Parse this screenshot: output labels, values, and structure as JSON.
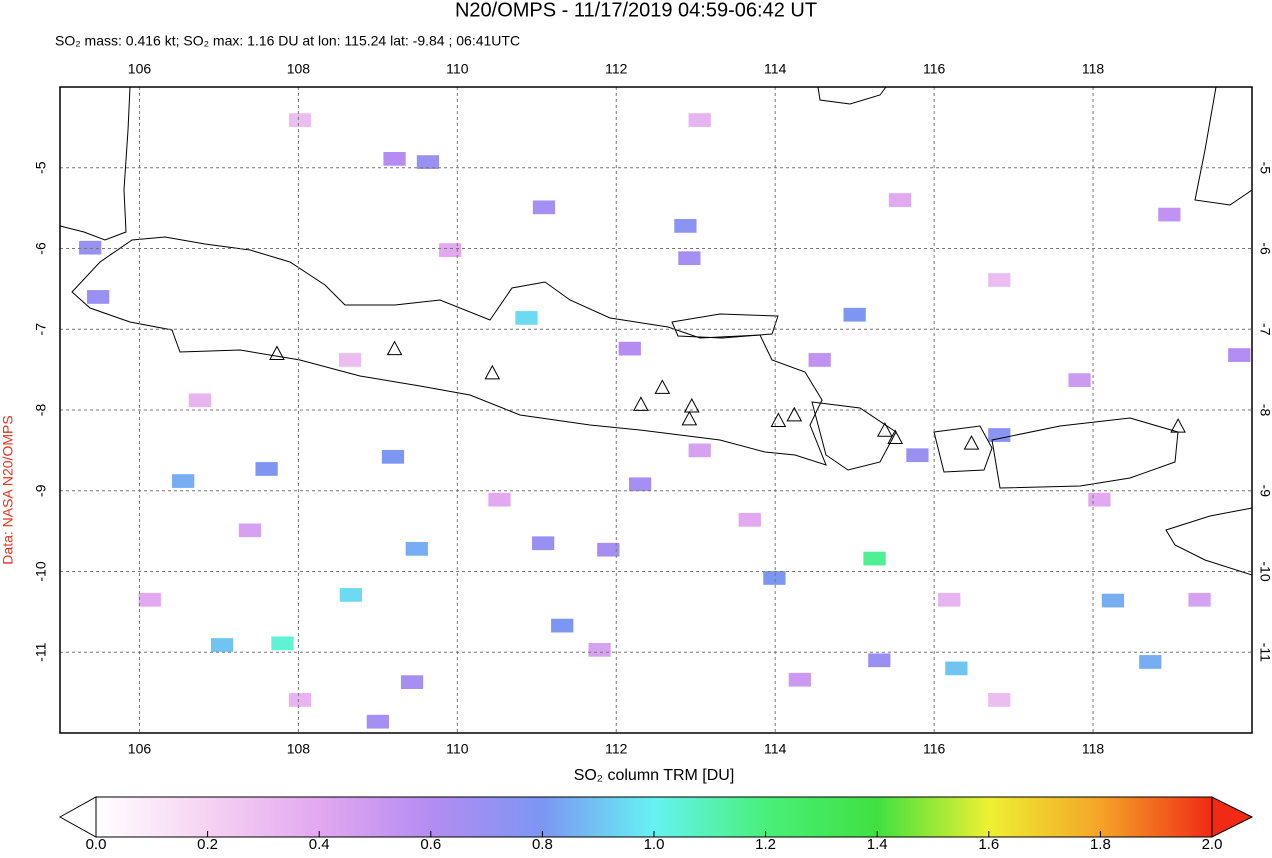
{
  "chart_data": {
    "type": "map",
    "title": "N20/OMPS - 11/17/2019 04:59-06:42 UT",
    "subtitle": "SO₂ mass: 0.416 kt; SO₂ max: 1.16 DU at lon: 115.24 lat: -9.84 ; 06:41UTC",
    "credit": "Data: NASA N20/OMPS",
    "xlim": [
      105,
      120
    ],
    "ylim": [
      -12,
      -4
    ],
    "xticks": [
      106,
      108,
      110,
      112,
      114,
      116,
      118
    ],
    "yticks": [
      -5,
      -6,
      -7,
      -8,
      -9,
      -10,
      -11
    ],
    "grid": true,
    "pixels": {
      "lon": [
        110.87,
        115.25,
        108.66,
        116.28,
        107.8,
        107.04,
        109.49,
        109.19,
        107.6,
        106.55,
        115.0,
        112.87,
        113.99,
        118.25,
        118.72,
        105.38,
        105.48,
        115.79,
        116.82,
        111.09,
        109.63,
        109.21,
        112.3,
        111.08,
        111.9,
        111.32,
        115.31,
        109.0,
        109.43,
        112.92,
        112.17,
        119.84,
        118.96,
        114.56,
        108.02,
        113.05,
        115.57,
        116.82,
        106.76,
        110.53,
        113.05,
        118.08,
        108.02,
        116.82,
        106.13,
        111.79,
        114.31,
        119.34,
        116.19,
        109.91,
        108.65,
        117.83,
        113.68,
        107.39
      ],
      "lat": [
        -6.86,
        -9.84,
        -10.29,
        -11.2,
        -10.89,
        -10.91,
        -9.72,
        -8.58,
        -8.73,
        -8.88,
        -6.82,
        -5.72,
        -10.08,
        -10.36,
        -11.12,
        -5.99,
        -6.6,
        -8.56,
        -8.31,
        -5.49,
        -4.93,
        -4.89,
        -8.92,
        -9.65,
        -9.73,
        -10.67,
        -11.1,
        -11.86,
        -11.37,
        -6.12,
        -7.24,
        -7.32,
        -5.58,
        -7.38,
        -4.41,
        -4.41,
        -5.4,
        -6.39,
        -7.88,
        -9.11,
        -8.5,
        -9.11,
        -11.59,
        -11.59,
        -10.35,
        -10.97,
        -11.34,
        -10.35,
        -10.35,
        -6.02,
        -7.38,
        -7.63,
        -9.36,
        -9.49
      ],
      "values": [
        0.95,
        1.16,
        0.95,
        0.9,
        1.05,
        0.9,
        0.85,
        0.8,
        0.8,
        0.85,
        0.8,
        0.75,
        0.8,
        0.85,
        0.85,
        0.7,
        0.7,
        0.7,
        0.75,
        0.65,
        0.7,
        0.6,
        0.65,
        0.7,
        0.65,
        0.8,
        0.7,
        0.65,
        0.65,
        0.65,
        0.6,
        0.6,
        0.55,
        0.55,
        0.3,
        0.35,
        0.4,
        0.3,
        0.35,
        0.4,
        0.45,
        0.4,
        0.35,
        0.3,
        0.4,
        0.45,
        0.5,
        0.45,
        0.35,
        0.4,
        0.3,
        0.5,
        0.4,
        0.45
      ]
    },
    "volcanoes": {
      "lon": [
        107.73,
        109.21,
        110.44,
        112.31,
        112.58,
        112.95,
        112.92,
        114.04,
        114.24,
        115.38,
        115.51,
        116.47,
        119.07
      ],
      "lat": [
        -7.3,
        -7.24,
        -7.54,
        -7.93,
        -7.72,
        -7.95,
        -8.11,
        -8.13,
        -8.06,
        -8.25,
        -8.34,
        -8.41,
        -8.2
      ]
    },
    "colorbar": {
      "label": "SO₂ column TRM [DU]",
      "lim": [
        0,
        2
      ],
      "ticks": [
        {
          "value": 0,
          "label": "0.0"
        },
        {
          "value": 0.2,
          "label": "0.2"
        },
        {
          "value": 0.4,
          "label": "0.4"
        },
        {
          "value": 0.6,
          "label": "0.6"
        },
        {
          "value": 0.8,
          "label": "0.8"
        },
        {
          "value": 1,
          "label": "1.0"
        },
        {
          "value": 1.2,
          "label": "1.2"
        },
        {
          "value": 1.4,
          "label": "1.4"
        },
        {
          "value": 1.6,
          "label": "1.6"
        },
        {
          "value": 1.8,
          "label": "1.8"
        },
        {
          "value": 2,
          "label": "2.0"
        }
      ],
      "colors": [
        "#ffffff",
        "#f6d2f2",
        "#e2a8f0",
        "#b48cf2",
        "#7c96f2",
        "#66f2f2",
        "#48f07a",
        "#40e040",
        "#eef032",
        "#f4a428",
        "#f02a14"
      ]
    }
  }
}
